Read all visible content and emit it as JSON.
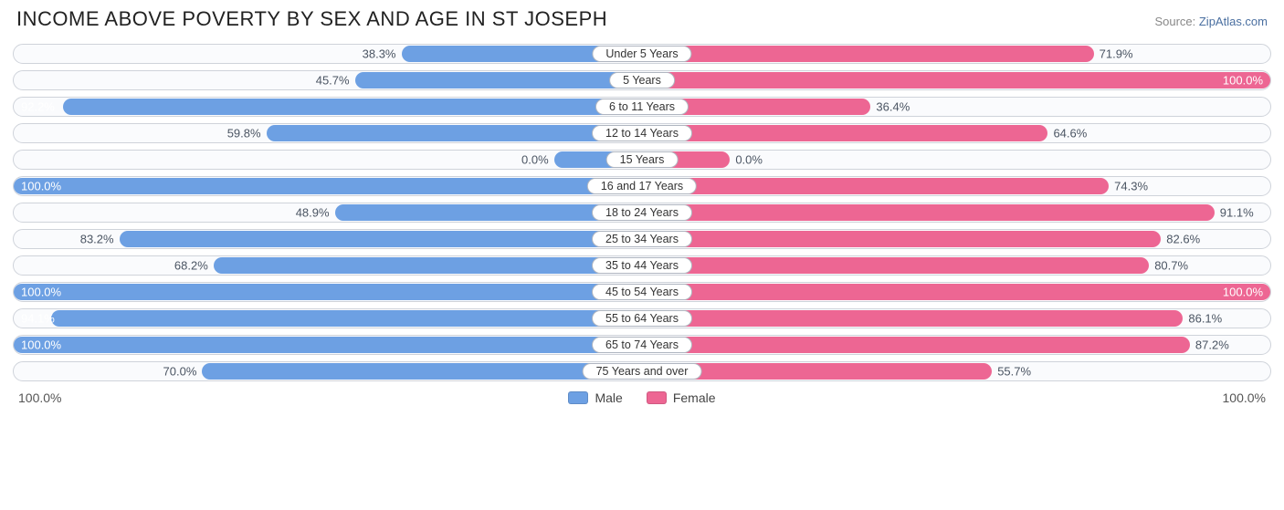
{
  "title": "INCOME ABOVE POVERTY BY SEX AND AGE IN ST JOSEPH",
  "source_label": "Source: ",
  "source_name": "ZipAtlas.com",
  "colors": {
    "title": "#222222",
    "source_label": "#888888",
    "source_name": "#4a6fa0",
    "row_border": "#cfd3da",
    "row_bg": "#fafbfd",
    "male_fill": "#6da0e3",
    "male_text": "#4b5563",
    "female_fill": "#ed6693",
    "female_text": "#4b5563",
    "cat_label_border": "#b0b6c0",
    "cat_label_text": "#333333",
    "axis_text": "#555555",
    "legend_text": "#444444"
  },
  "axis": {
    "max": 100.0,
    "left_label": "100.0%",
    "right_label": "100.0%"
  },
  "legend": {
    "male": "Male",
    "female": "Female"
  },
  "min_bar_pct_when_zero": 14,
  "label_inside_threshold": 92,
  "rows": [
    {
      "category": "Under 5 Years",
      "male": 38.3,
      "female": 71.9
    },
    {
      "category": "5 Years",
      "male": 45.7,
      "female": 100.0
    },
    {
      "category": "6 to 11 Years",
      "male": 92.2,
      "female": 36.4
    },
    {
      "category": "12 to 14 Years",
      "male": 59.8,
      "female": 64.6
    },
    {
      "category": "15 Years",
      "male": 0.0,
      "female": 0.0
    },
    {
      "category": "16 and 17 Years",
      "male": 100.0,
      "female": 74.3
    },
    {
      "category": "18 to 24 Years",
      "male": 48.9,
      "female": 91.1
    },
    {
      "category": "25 to 34 Years",
      "male": 83.2,
      "female": 82.6
    },
    {
      "category": "35 to 44 Years",
      "male": 68.2,
      "female": 80.7
    },
    {
      "category": "45 to 54 Years",
      "male": 100.0,
      "female": 100.0
    },
    {
      "category": "55 to 64 Years",
      "male": 94.1,
      "female": 86.1
    },
    {
      "category": "65 to 74 Years",
      "male": 100.0,
      "female": 87.2
    },
    {
      "category": "75 Years and over",
      "male": 70.0,
      "female": 55.7
    }
  ]
}
